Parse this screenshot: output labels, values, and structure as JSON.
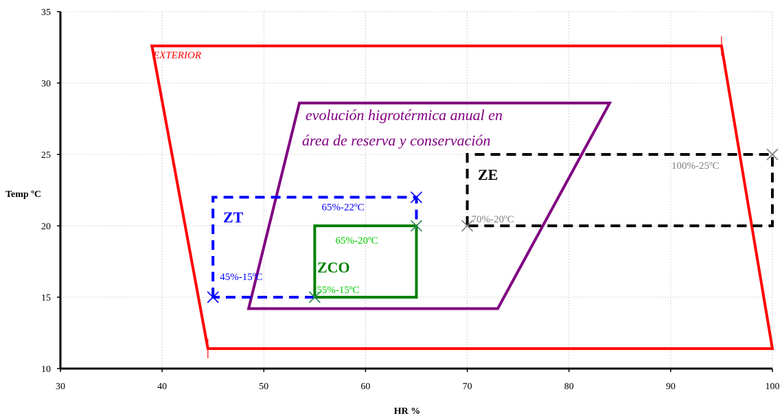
{
  "chart_data": {
    "type": "line",
    "title": "",
    "xlabel": "HR %",
    "ylabel": "Temp ºC",
    "xlim": [
      30,
      100
    ],
    "ylim": [
      10,
      35
    ],
    "grid": true,
    "x_ticks": [
      "30",
      "40",
      "50",
      "60",
      "70",
      "80",
      "90",
      "100"
    ],
    "y_ticks": [
      "10",
      "15",
      "20",
      "25",
      "30",
      "35"
    ],
    "series": [
      {
        "name": "EXTERIOR",
        "color": "#ff0000",
        "style": "solid",
        "closed": true,
        "points": [
          [
            39,
            32.6
          ],
          [
            95,
            32.6
          ],
          [
            100,
            11.4
          ],
          [
            44.5,
            11.4
          ]
        ]
      },
      {
        "name": "evolución higrotérmica anual en área de reserva y conservación",
        "color": "#800080",
        "style": "solid",
        "closed": true,
        "points": [
          [
            53.5,
            28.6
          ],
          [
            84,
            28.6
          ],
          [
            73,
            14.2
          ],
          [
            48.5,
            14.2
          ]
        ]
      },
      {
        "name": "ZT",
        "color": "#0000ff",
        "style": "dashed",
        "closed": true,
        "points": [
          [
            45,
            15
          ],
          [
            45,
            22
          ],
          [
            65,
            22
          ],
          [
            65,
            15
          ]
        ]
      },
      {
        "name": "ZCO",
        "color": "#008000",
        "style": "solid",
        "closed": true,
        "points": [
          [
            55,
            15
          ],
          [
            55,
            20
          ],
          [
            65,
            20
          ],
          [
            65,
            15
          ]
        ]
      },
      {
        "name": "ZE",
        "color": "#000000",
        "style": "dashed",
        "closed": true,
        "points": [
          [
            70,
            20
          ],
          [
            70,
            25
          ],
          [
            100,
            25
          ],
          [
            100,
            20
          ]
        ]
      }
    ],
    "markers": [
      {
        "x": 45,
        "y": 15,
        "color": "#0000ff",
        "label": "45%-15ºC"
      },
      {
        "x": 65,
        "y": 22,
        "color": "#0000ff",
        "label": "65%-22ºC"
      },
      {
        "x": 55,
        "y": 15,
        "color": "#2e8b57",
        "label": "55%-15ºC"
      },
      {
        "x": 65,
        "y": 20,
        "color": "#2e8b57",
        "label": "65%-20ºC"
      },
      {
        "x": 70,
        "y": 20,
        "color": "#808080",
        "label": "70%-20ºC"
      },
      {
        "x": 100,
        "y": 25,
        "color": "#808080",
        "label": "100%-25ºC"
      }
    ],
    "annotations": {
      "exterior": "EXTERIOR",
      "evolution_line1": "evolución higrotérmica anual en",
      "evolution_line2": "área de reserva  y conservación",
      "zt": "ZT",
      "zco": "ZCO",
      "ze": "ZE"
    }
  }
}
